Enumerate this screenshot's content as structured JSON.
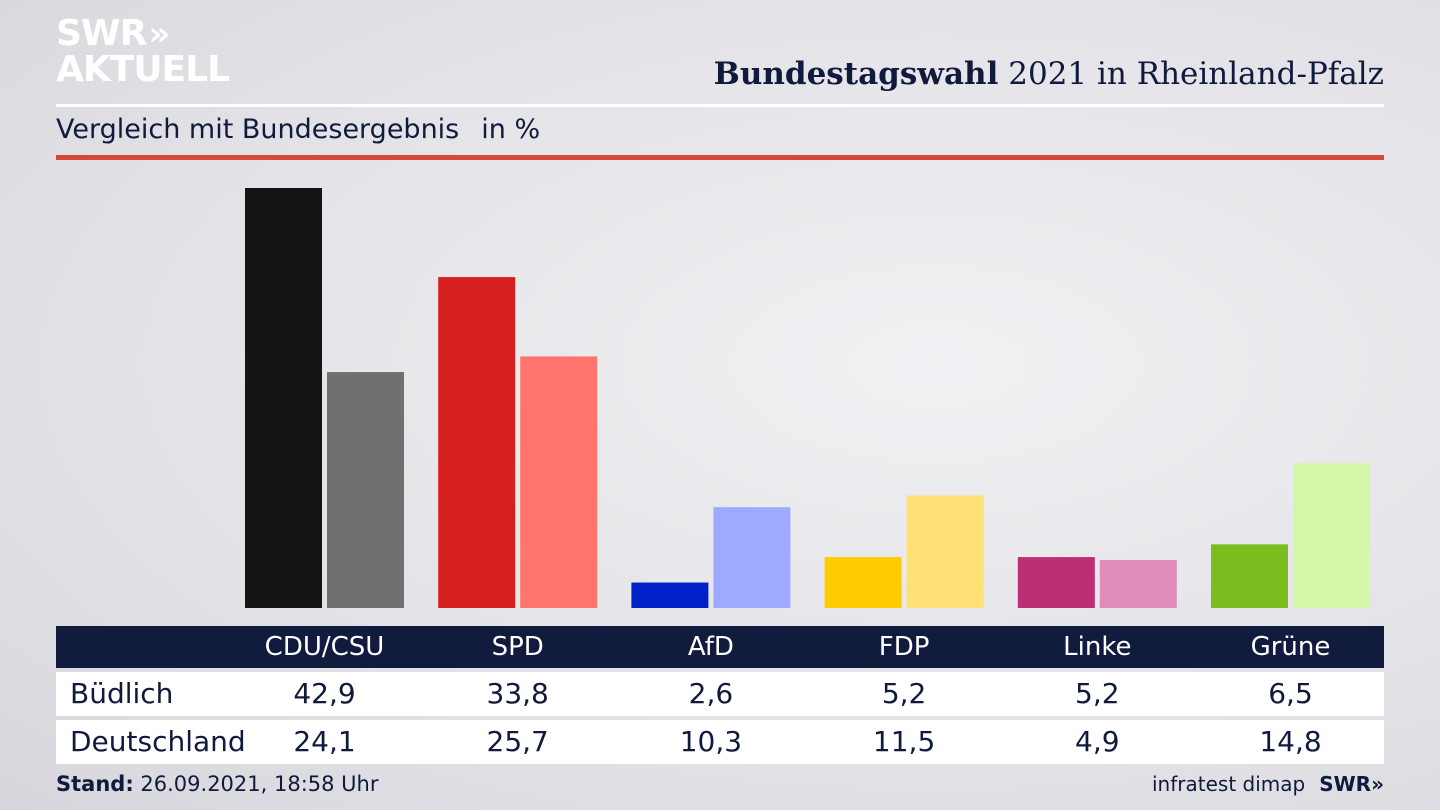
{
  "logo": {
    "line1": "SWR",
    "line2": "AKTUELL",
    "arrows": "»"
  },
  "header": {
    "title_bold": "Bundestagswahl",
    "title_rest": " 2021 in Rheinland-Pfalz",
    "subtitle": "Vergleich mit Bundesergebnis",
    "unit": "in %"
  },
  "colors": {
    "primary": [
      "#141414",
      "#d61f1f",
      "#0020c8",
      "#ffcc00",
      "#be2e74",
      "#79bd1e"
    ],
    "secondary": [
      "#72706e",
      "#ff756e",
      "#9eaaff",
      "#ffe074",
      "#e08cb8",
      "#d4f8a8"
    ]
  },
  "chart_data": {
    "type": "bar",
    "categories": [
      "CDU/CSU",
      "SPD",
      "AfD",
      "FDP",
      "Linke",
      "Grüne"
    ],
    "series": [
      {
        "name": "Büdlich",
        "values": [
          42.9,
          33.8,
          2.6,
          5.2,
          5.2,
          6.5
        ],
        "labels": [
          "42,9",
          "33,8",
          "2,6",
          "5,2",
          "5,2",
          "6,5"
        ]
      },
      {
        "name": "Deutschland",
        "values": [
          24.1,
          25.7,
          10.3,
          11.5,
          4.9,
          14.8
        ],
        "labels": [
          "24,1",
          "25,7",
          "10,3",
          "11,5",
          "4,9",
          "14,8"
        ]
      }
    ],
    "ylim": [
      0,
      42.9
    ]
  },
  "footer": {
    "stand_label": "Stand:",
    "stand_value": " 26.09.2021, 18:58 Uhr",
    "source": "infratest dimap",
    "brand": "SWR»"
  }
}
